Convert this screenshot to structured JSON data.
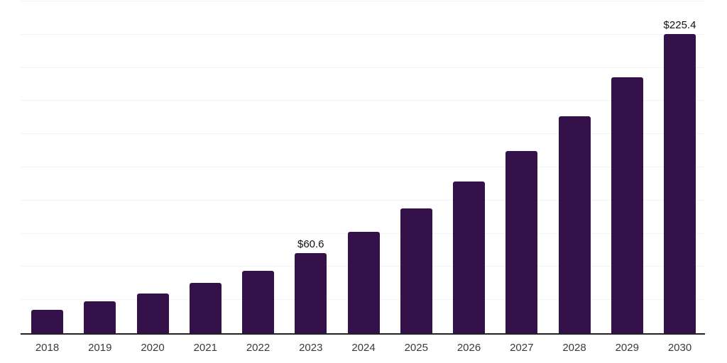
{
  "chart_data": {
    "type": "bar",
    "title": "",
    "xlabel": "",
    "ylabel": "",
    "categories": [
      "2018",
      "2019",
      "2020",
      "2021",
      "2022",
      "2023",
      "2024",
      "2025",
      "2026",
      "2027",
      "2028",
      "2029",
      "2030"
    ],
    "values": [
      17.6,
      24.0,
      29.9,
      37.9,
      47.0,
      60.6,
      76.4,
      94.0,
      114.3,
      137.3,
      163.5,
      192.9,
      225.4
    ],
    "data_labels": {
      "2023": "$60.6",
      "2030": "$225.4"
    },
    "ylim": [
      0,
      250
    ],
    "grid_interval": 25,
    "grid": "horizontal-only",
    "legend_position": "none",
    "colors": {
      "bar_fill": "#35114a",
      "gridline": "#f3f3f3",
      "axis_line": "#222222",
      "data_label_text": "#111111",
      "tick_label_text": "#3a3a3a",
      "background": "#ffffff"
    }
  }
}
